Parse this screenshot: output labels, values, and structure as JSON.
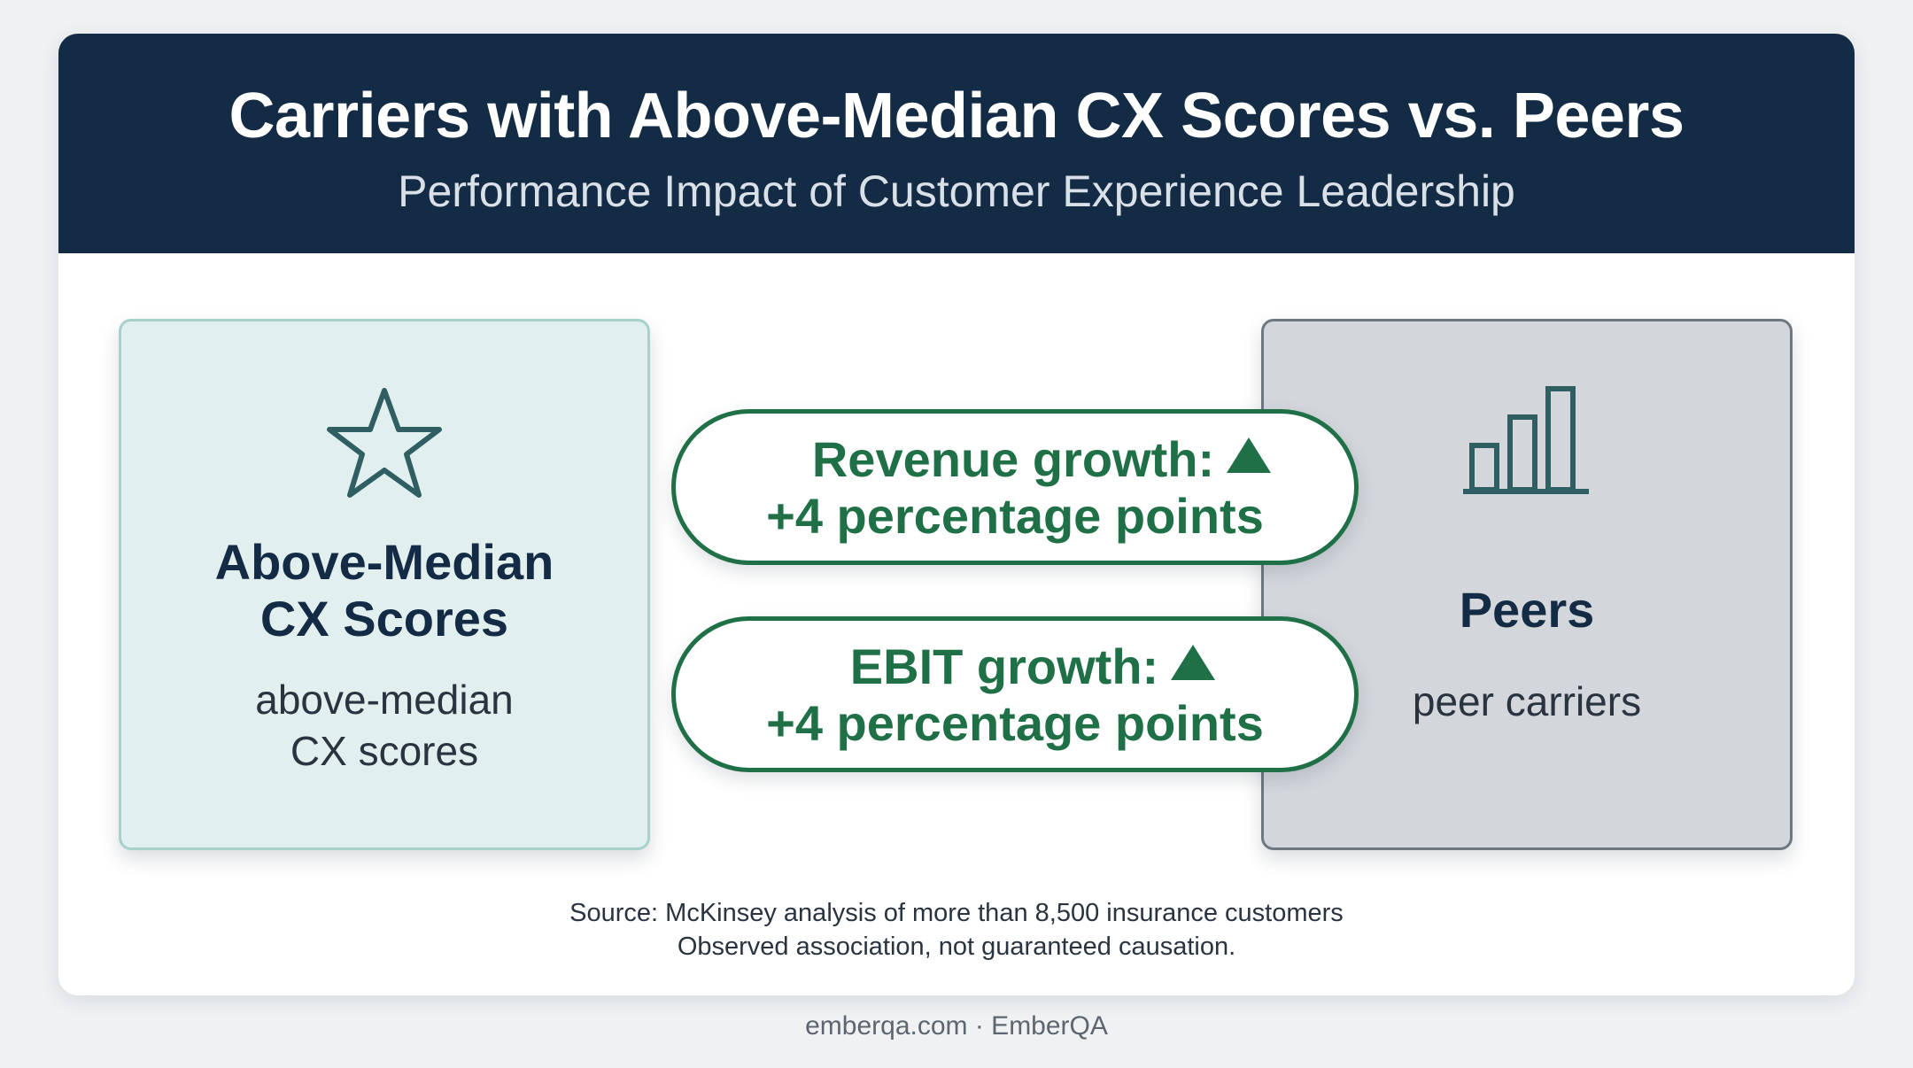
{
  "header": {
    "title": "Carriers with Above-Median CX Scores vs. Peers",
    "subtitle": "Performance Impact of Customer Experience Leadership"
  },
  "left_panel": {
    "icon": "star-icon",
    "title_line1": "Above-Median",
    "title_line2": "CX Scores",
    "subtitle": "above-median CX scores"
  },
  "right_panel": {
    "icon": "bar-chart-icon",
    "title": "Peers",
    "subtitle": "peer carriers"
  },
  "metrics": [
    {
      "label": "Revenue growth:",
      "direction_icon": "up-triangle-icon",
      "value": "+4 percentage points"
    },
    {
      "label": "EBIT growth:",
      "direction_icon": "up-triangle-icon",
      "value": "+4 percentage points"
    }
  ],
  "source": {
    "line1": "Source: McKinsey analysis of more than 8,500 insurance customers",
    "line2": "Observed association, not guaranteed causation."
  },
  "footer": "emberqa.com · EmberQA",
  "colors": {
    "header_bg": "#132b45",
    "accent_green": "#1f7047",
    "left_panel_bg": "#e2efef",
    "right_panel_bg": "#d3d6db",
    "icon_color": "#2f5f63"
  }
}
